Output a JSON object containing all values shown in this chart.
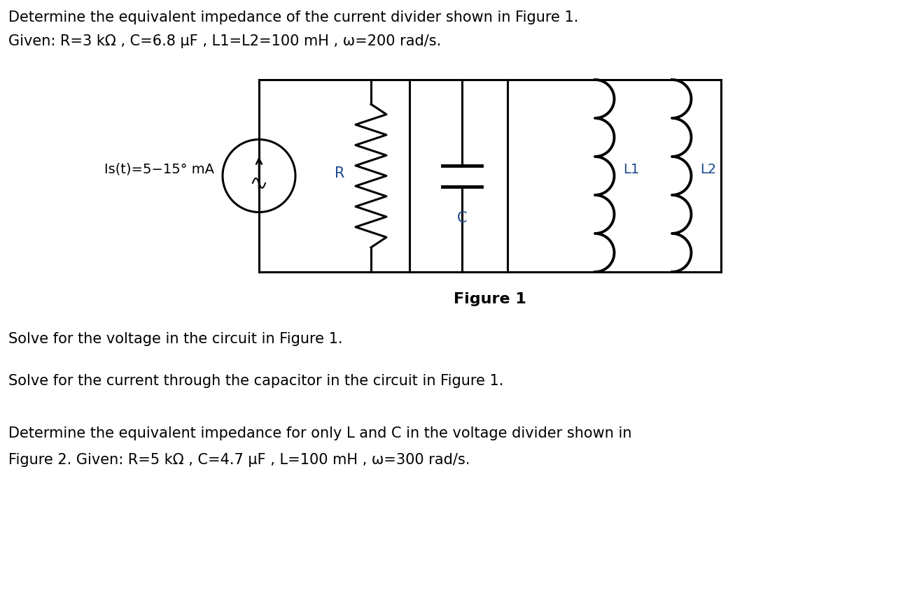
{
  "bg_color": "#ffffff",
  "text_color": "#000000",
  "label_color": "#1a4b8c",
  "title_line1": "Determine the equivalent impedance of the current divider shown in Figure 1.",
  "title_line2": "Given: R=3 kΩ , C=6.8 μF , L1=L2=100 mH , ω=200 rad/s.",
  "figure_caption": "Figure 1",
  "question1": "Solve for the voltage in the circuit in Figure 1.",
  "question2": "Solve for the current through the capacitor in the circuit in Figure 1.",
  "question3_line1": "Determine the equivalent impedance for only L and C in the voltage divider shown in",
  "question3_line2": "Figure 2. Given: R=5 kΩ , C=4.7 μF , L=100 mH , ω=300 rad/s.",
  "current_source_label": "Is(t)=5−15° mA",
  "R_label": "R",
  "C_label": "C",
  "L1_label": "L1",
  "L2_label": "L2",
  "font_size_text": 15,
  "font_size_caption": 15,
  "font_size_label": 14
}
